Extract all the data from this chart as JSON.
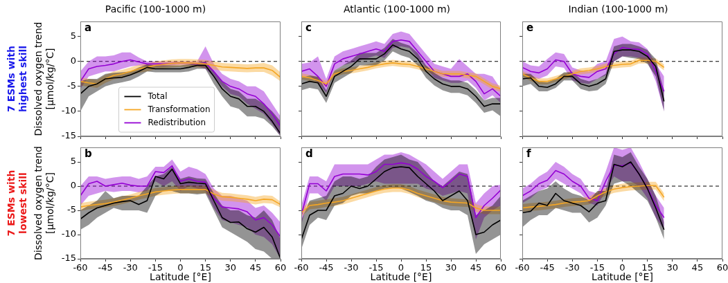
{
  "chart_data": [
    {
      "type": "line",
      "title": "Pacific (100-1000 m)",
      "ylabel": "Dissolved oxygen trend [μmol/kg/°C]",
      "annotations": [
        "a",
        "7 ESMs with highest skill"
      ],
      "x": [
        -60,
        -55,
        -50,
        -45,
        -40,
        -35,
        -30,
        -25,
        -20,
        -15,
        -10,
        -5,
        0,
        5,
        10,
        15,
        20,
        25,
        30,
        35,
        40,
        45,
        50,
        55,
        60
      ],
      "xlim": [
        -60,
        60
      ],
      "xticks": [
        -60,
        -45,
        -30,
        -15,
        0,
        15,
        30,
        45,
        60
      ],
      "ylim": [
        -15,
        8
      ],
      "yticks": [
        -15,
        -10,
        -5,
        0,
        5
      ],
      "tick_labels": "y",
      "legend": "bottom",
      "ref_lines": [
        {
          "axis": "y",
          "value": 0,
          "color": "#000000",
          "line_style": "dashed"
        }
      ],
      "series": [
        {
          "name": "Total",
          "color": "#000000",
          "values": [
            -6.5,
            -5,
            -4.5,
            -3.5,
            -3.3,
            -3.2,
            -2.7,
            -2,
            -1.2,
            -1.5,
            -1.5,
            -1.5,
            -1.5,
            -1.2,
            -0.8,
            -0.8,
            -3,
            -5.5,
            -7,
            -7.5,
            -9,
            -9,
            -10,
            -12,
            -14.5
          ],
          "lower": [
            -10,
            -7,
            -6,
            -5,
            -4.5,
            -4.2,
            -3.8,
            -3,
            -2,
            -2.2,
            -2.2,
            -2.2,
            -2.2,
            -2,
            -1.5,
            -1.5,
            -4.5,
            -7,
            -9,
            -9.5,
            -11,
            -11,
            -11.5,
            -13,
            -15
          ],
          "upper": [
            -4,
            -3.5,
            -3.5,
            -2.5,
            -2.3,
            -2.2,
            -2,
            -1.2,
            -0.6,
            -0.8,
            -0.8,
            -0.8,
            -0.8,
            -0.6,
            -0.3,
            0,
            -2,
            -4,
            -5.5,
            -6,
            -7.5,
            -7.5,
            -8.5,
            -10,
            -12
          ]
        },
        {
          "name": "Transformation",
          "color": "#f5a623",
          "values": [
            -4,
            -4.3,
            -4.5,
            -3.5,
            -2.8,
            -2.5,
            -2,
            -1.5,
            -1.2,
            -0.8,
            -0.6,
            -0.4,
            -0.3,
            -0.3,
            -0.4,
            -0.5,
            -0.8,
            -1.1,
            -1.2,
            -1.3,
            -1.4,
            -1.3,
            -1.3,
            -1.8,
            -3.2
          ],
          "lower": [
            -4.8,
            -5.1,
            -5.3,
            -4.3,
            -3.6,
            -3.3,
            -2.8,
            -2.3,
            -2,
            -1.6,
            -1.4,
            -1.2,
            -1.1,
            -1.1,
            -1.2,
            -1.3,
            -1.6,
            -1.9,
            -2,
            -2.1,
            -2.2,
            -2.1,
            -2.1,
            -2.8,
            -4
          ],
          "upper": [
            -3.2,
            -3.5,
            -3.7,
            -2.7,
            -2,
            -1.7,
            -1.2,
            -0.7,
            -0.4,
            0,
            0.2,
            0.4,
            0.5,
            0.5,
            0.4,
            0.3,
            0,
            -0.3,
            -0.4,
            -0.5,
            -0.6,
            -0.5,
            -0.3,
            -0.8,
            -2.2
          ]
        },
        {
          "name": "Redistribution",
          "color": "#9400d3",
          "values": [
            -4,
            -1.5,
            -1,
            -0.8,
            -0.5,
            0,
            0.3,
            -0.1,
            -0.5,
            -0.5,
            -0.5,
            -0.4,
            -0.3,
            -0.3,
            -0.5,
            -0.3,
            -2,
            -4,
            -5,
            -5.5,
            -6.5,
            -7,
            -8.5,
            -10.5,
            -13
          ],
          "lower": [
            -5.5,
            -3,
            -2.5,
            -2,
            -2,
            -1.5,
            -1,
            -0.8,
            -1,
            -1,
            -1,
            -0.8,
            -0.7,
            -0.7,
            -0.9,
            -1.5,
            -3,
            -5,
            -6.5,
            -7,
            -8.5,
            -9.5,
            -10.5,
            -12.5,
            -15
          ],
          "upper": [
            -2,
            0,
            1,
            1,
            1.2,
            1.8,
            1.8,
            0.8,
            0,
            0,
            0,
            0,
            0,
            0,
            0,
            3,
            -0.5,
            -2.5,
            -3.5,
            -4,
            -5,
            -5,
            -6,
            -8.5,
            -11
          ]
        }
      ]
    },
    {
      "type": "line",
      "title": "Atlantic (100-1000 m)",
      "annotations": [
        "c"
      ],
      "x": [
        -60,
        -55,
        -50,
        -45,
        -40,
        -35,
        -30,
        -25,
        -20,
        -15,
        -10,
        -5,
        0,
        5,
        10,
        15,
        20,
        25,
        30,
        35,
        40,
        45,
        50,
        55,
        60
      ],
      "xlim": [
        -60,
        60
      ],
      "xticks": [
        -60,
        -45,
        -30,
        -15,
        0,
        15,
        30,
        45,
        60
      ],
      "ylim": [
        -15,
        8
      ],
      "yticks": [
        -15,
        -10,
        -5,
        0,
        5
      ],
      "tick_labels": false,
      "ref_lines": [
        {
          "axis": "y",
          "value": 0,
          "color": "#000000",
          "line_style": "dashed"
        }
      ],
      "series": [
        {
          "color": "#000000",
          "values": [
            -4.5,
            -4,
            -4.3,
            -7,
            -3,
            -2,
            -1,
            0.5,
            0.5,
            0.5,
            1.5,
            3.3,
            2.5,
            2,
            0.5,
            -2,
            -3.5,
            -4.5,
            -5,
            -5,
            -5.5,
            -7,
            -9,
            -8.5,
            -8.5
          ],
          "lower": [
            -5.8,
            -5.3,
            -5.6,
            -8.3,
            -4.3,
            -3.3,
            -2.3,
            -0.8,
            -0.8,
            -0.8,
            0.2,
            2,
            1.2,
            0.7,
            -0.8,
            -3.3,
            -4.8,
            -5.8,
            -6.3,
            -6.3,
            -6.8,
            -8.3,
            -10.3,
            -9.8,
            -11
          ],
          "upper": [
            -3.3,
            -2.8,
            -3.1,
            -5.8,
            -1.8,
            -0.8,
            0.2,
            1.7,
            1.7,
            1.7,
            2.7,
            4.5,
            3.7,
            3.2,
            1.7,
            -0.8,
            -2.3,
            -3.3,
            -3.8,
            -3.8,
            -4.3,
            -5.8,
            -7.8,
            -7.3,
            -7.3
          ]
        },
        {
          "color": "#f5a623",
          "values": [
            -3,
            -3.3,
            -3.8,
            -4.5,
            -2.5,
            -2,
            -1.8,
            -1.5,
            -1.2,
            -0.8,
            -0.5,
            -0.3,
            -0.5,
            -0.6,
            -1,
            -1.5,
            -2,
            -2.5,
            -2.5,
            -2.5,
            -2.8,
            -3,
            -4,
            -5,
            -5.5
          ],
          "lower": [
            -3.6,
            -3.9,
            -4.4,
            -5.1,
            -3.1,
            -2.6,
            -2.4,
            -2.1,
            -1.8,
            -1.4,
            -1.1,
            -0.9,
            -1.1,
            -1.2,
            -1.6,
            -2.1,
            -2.6,
            -3.1,
            -3.1,
            -3.1,
            -3.4,
            -3.6,
            -4.6,
            -5.6,
            -6.1
          ],
          "upper": [
            -2.4,
            -2.7,
            -3.2,
            -3.9,
            -1.9,
            -1.4,
            -1.2,
            -0.9,
            -0.6,
            -0.2,
            0.1,
            0.3,
            0.1,
            0,
            -0.4,
            -0.9,
            -1.4,
            -1.9,
            -1.9,
            -1.9,
            -2.2,
            -2.4,
            -3.4,
            -4.4,
            -4.9
          ]
        },
        {
          "color": "#9400d3",
          "values": [
            -2,
            -1.5,
            -3,
            -5,
            -0.5,
            0.5,
            1,
            1.5,
            2,
            2.5,
            2,
            4,
            4.3,
            4,
            2,
            0,
            -2,
            -2.5,
            -3,
            -3,
            -2.5,
            -4,
            -6.5,
            -5.5,
            -7
          ],
          "lower": [
            -3.3,
            -2.8,
            -4.3,
            -6.3,
            -1.8,
            -0.8,
            -0.3,
            0.2,
            0.7,
            1.2,
            0.7,
            2.7,
            3,
            2.7,
            0.7,
            -1.3,
            -3.3,
            -3.8,
            -4.3,
            -4.3,
            -3.8,
            -5.3,
            -7.8,
            -6.8,
            -8.3
          ],
          "upper": [
            -0.5,
            -0.2,
            1,
            -3.5,
            1,
            2,
            2.5,
            3,
            3.5,
            4,
            3.5,
            5.5,
            6,
            5.5,
            3.5,
            1.5,
            -0.5,
            -1,
            -1.5,
            0.5,
            -1,
            -2.5,
            -2.5,
            -3,
            -5.5
          ]
        }
      ]
    },
    {
      "type": "line",
      "title": "Indian (100-1000 m)",
      "annotations": [
        "e"
      ],
      "x": [
        -60,
        -55,
        -50,
        -45,
        -40,
        -35,
        -30,
        -25,
        -20,
        -15,
        -10,
        -5,
        0,
        5,
        10,
        15,
        20,
        25
      ],
      "xlim": [
        -60,
        60
      ],
      "xticks": [
        -60,
        -45,
        -30,
        -15,
        0,
        15,
        30,
        45,
        60
      ],
      "ylim": [
        -15,
        8
      ],
      "yticks": [
        -15,
        -10,
        -5,
        0,
        5
      ],
      "tick_labels": false,
      "ref_lines": [
        {
          "axis": "y",
          "value": 0,
          "color": "#000000",
          "line_style": "dashed"
        }
      ],
      "series": [
        {
          "color": "#000000",
          "values": [
            -3.5,
            -3.3,
            -5,
            -5.2,
            -4.5,
            -3,
            -3,
            -4.5,
            -5,
            -4.5,
            -3.5,
            2,
            2.3,
            2.3,
            2,
            1,
            -1,
            -8
          ],
          "lower": [
            -5,
            -4.5,
            -6,
            -6,
            -5.3,
            -3.8,
            -3.8,
            -5.5,
            -6,
            -5.8,
            -4.5,
            0,
            1,
            0.7,
            0.5,
            -0.5,
            -3,
            -10
          ],
          "upper": [
            -2.5,
            -2.5,
            -4,
            -4.2,
            -3.5,
            -2.2,
            -2.2,
            -3.5,
            -4,
            -3.5,
            -2.5,
            3,
            3.5,
            3.5,
            3,
            2.3,
            0.5,
            -6
          ]
        },
        {
          "color": "#f5a623",
          "values": [
            -2.5,
            -3.3,
            -4,
            -4,
            -3.5,
            -3,
            -2.5,
            -2,
            -1.8,
            -1.5,
            -1,
            -0.8,
            -0.6,
            -0.5,
            0.2,
            0.2,
            0,
            -1.2
          ],
          "lower": [
            -3.1,
            -3.9,
            -4.6,
            -4.6,
            -4.1,
            -3.6,
            -3.1,
            -2.6,
            -2.4,
            -2.1,
            -1.6,
            -1.4,
            -1.2,
            -1.1,
            -0.4,
            -0.4,
            -0.6,
            -1.8
          ],
          "upper": [
            -1.9,
            -2.7,
            -3.4,
            -3.4,
            -2.9,
            -2.4,
            -1.9,
            -1.4,
            -1.2,
            -0.9,
            -0.4,
            -0.2,
            0,
            0.1,
            0.8,
            0.8,
            0.6,
            -0.6
          ]
        },
        {
          "color": "#9400d3",
          "values": [
            -1.2,
            -2,
            -2.3,
            -1.5,
            0.3,
            0,
            -2.5,
            -3,
            -3.2,
            -2,
            -1.5,
            1.5,
            2.8,
            2.5,
            2.4,
            1.5,
            -2,
            -6
          ],
          "lower": [
            -2.5,
            -3.2,
            -3.5,
            -2.8,
            -1,
            -1.3,
            -3.8,
            -4.3,
            -4.5,
            -3.5,
            -2.8,
            0,
            1,
            1,
            0.7,
            0,
            -4,
            -10
          ],
          "upper": [
            0,
            -0.8,
            -1,
            0.5,
            1.8,
            1.5,
            -1.2,
            -1.8,
            -2,
            -0.5,
            0,
            4.5,
            5,
            4,
            3.8,
            2.5,
            -0.5,
            -3
          ]
        }
      ]
    },
    {
      "type": "line",
      "ylabel": "Dissolved oxygen trend [μmol/kg/°C]",
      "xlabel": "Latitude [°E]",
      "annotations": [
        "b",
        "7 ESMs with lowest skill"
      ],
      "x": [
        -60,
        -55,
        -50,
        -45,
        -40,
        -35,
        -30,
        -25,
        -20,
        -15,
        -10,
        -5,
        0,
        5,
        10,
        15,
        20,
        25,
        30,
        35,
        40,
        45,
        50,
        55,
        60
      ],
      "xlim": [
        -60,
        60
      ],
      "xticks": [
        -60,
        -45,
        -30,
        -15,
        0,
        15,
        30,
        45,
        60
      ],
      "ylim": [
        -15,
        8
      ],
      "yticks": [
        -15,
        -10,
        -5,
        0,
        5
      ],
      "ref_lines": [
        {
          "axis": "y",
          "value": 0,
          "color": "#000000",
          "line_style": "dashed"
        }
      ],
      "series": [
        {
          "color": "#000000",
          "values": [
            -6.8,
            -5.5,
            -4.5,
            -4,
            -3.5,
            -3.2,
            -3,
            -3.8,
            -3,
            2,
            1.5,
            3.5,
            0.5,
            0.8,
            0.6,
            0.5,
            -3,
            -6.5,
            -7.5,
            -7.4,
            -8.8,
            -9.5,
            -8.5,
            -10.5,
            -15
          ],
          "lower": [
            -9,
            -8,
            -6.5,
            -5.5,
            -4.5,
            -5,
            -5,
            -5,
            -5.5,
            -2,
            -1,
            -1,
            -1.5,
            -1.5,
            -1.7,
            -1.5,
            -5,
            -8.5,
            -9.5,
            -10.5,
            -11.5,
            -13,
            -13.5,
            -15,
            -15
          ],
          "upper": [
            -5,
            -4,
            -3,
            -1,
            -2.5,
            -2,
            -2,
            -2,
            0,
            2,
            2.5,
            4,
            1.5,
            2,
            1.6,
            1.5,
            -1.5,
            -4,
            -5,
            -5,
            -6,
            -6.5,
            -5,
            -7,
            -11
          ]
        },
        {
          "color": "#f5a623",
          "values": [
            -4.3,
            -4,
            -3.8,
            -3.6,
            -3.3,
            -2.9,
            -2.5,
            -2,
            -1.6,
            -1.2,
            -1,
            -0.8,
            -0.7,
            -0.7,
            -0.7,
            -0.7,
            -1.6,
            -2.2,
            -2.3,
            -2.5,
            -2.7,
            -3,
            -2.7,
            -2.8,
            -3.8
          ],
          "lower": [
            -5.1,
            -4.8,
            -4.6,
            -4.4,
            -4.1,
            -3.7,
            -3.3,
            -2.8,
            -2.4,
            -2,
            -1.8,
            -1.6,
            -1.5,
            -1.5,
            -1.5,
            -1.5,
            -2.4,
            -3,
            -3.1,
            -3.3,
            -3.5,
            -3.8,
            -3.5,
            -3.6,
            -4.4
          ],
          "upper": [
            -3.5,
            -3.2,
            -3,
            -2.8,
            -2.5,
            -2.1,
            -1.7,
            -1.2,
            -0.8,
            -0.4,
            -0.2,
            0,
            0.1,
            0.1,
            0.1,
            0.1,
            -0.8,
            -1.4,
            -1.5,
            -1.7,
            -1.9,
            -2.2,
            -1.9,
            -2,
            -3.2
          ]
        },
        {
          "color": "#9400d3",
          "values": [
            -2,
            0.5,
            1,
            0,
            0.3,
            0.6,
            0.2,
            0,
            0,
            3,
            2.8,
            4.2,
            1,
            1.5,
            1,
            0.8,
            -2.5,
            -4.3,
            -4.5,
            -4.7,
            -5.3,
            -7,
            -6.5,
            -8,
            -10.5
          ],
          "lower": [
            -4,
            -2,
            -1.5,
            -1,
            -1.2,
            -1,
            -1,
            -1.3,
            -1,
            1,
            0,
            1,
            -1,
            0,
            -0.5,
            -1,
            -4.5,
            -7,
            -7.5,
            -8,
            -8.5,
            -10,
            -10.5,
            -12,
            -15
          ],
          "upper": [
            0,
            2,
            2,
            1.5,
            1.8,
            2,
            2,
            1.5,
            2,
            4,
            4,
            5.5,
            3,
            4,
            3.5,
            2.5,
            -0.5,
            -2,
            -2,
            -2.5,
            -3,
            -4.5,
            -4,
            -5.5,
            -7.5
          ]
        }
      ]
    },
    {
      "type": "line",
      "xlabel": "Latitude [°E]",
      "annotations": [
        "d"
      ],
      "x": [
        -60,
        -55,
        -50,
        -45,
        -40,
        -35,
        -30,
        -25,
        -20,
        -15,
        -10,
        -5,
        0,
        5,
        10,
        15,
        20,
        25,
        30,
        35,
        40,
        45,
        50,
        55,
        60
      ],
      "xlim": [
        -60,
        60
      ],
      "xticks": [
        -60,
        -45,
        -30,
        -15,
        0,
        15,
        30,
        45,
        60
      ],
      "ylim": [
        -15,
        8
      ],
      "yticks": [
        -15,
        -10,
        -5,
        0,
        5
      ],
      "tick_labels": "x",
      "ref_lines": [
        {
          "axis": "y",
          "value": 0,
          "color": "#000000",
          "line_style": "dashed"
        }
      ],
      "series": [
        {
          "color": "#000000",
          "values": [
            -11,
            -6,
            -5,
            -5,
            -2,
            -1.5,
            0,
            -0.5,
            0,
            1.5,
            3,
            3.8,
            4,
            3.8,
            2,
            0.5,
            -1,
            -3,
            -2,
            -1,
            -3,
            -10,
            -9.5,
            -8,
            -7
          ],
          "lower": [
            -13,
            -8,
            -6.5,
            -7,
            -4,
            -3.5,
            -2,
            -1.5,
            -1.5,
            -1,
            -0.5,
            -0.3,
            -0.5,
            -1.2,
            -2,
            -3,
            -3.5,
            -4.5,
            -5,
            -5,
            -6,
            -14,
            -12,
            -11,
            -10
          ],
          "upper": [
            -7,
            -3,
            -2.5,
            -2,
            1,
            2,
            2,
            1.5,
            2,
            4,
            5.5,
            6,
            6.5,
            5.5,
            5,
            3,
            1,
            0,
            1.5,
            3,
            2.5,
            -6,
            -5,
            -4,
            -2
          ]
        },
        {
          "color": "#f5a623",
          "values": [
            -5.5,
            -4,
            -3.8,
            -3.5,
            -3.3,
            -3,
            -2.5,
            -2,
            -1.5,
            -1,
            -0.6,
            -0.4,
            -0.4,
            -0.8,
            -1.5,
            -2,
            -2.5,
            -3,
            -3.3,
            -3.4,
            -3.5,
            -4.5,
            -5,
            -5,
            -5
          ],
          "lower": [
            -6.3,
            -4.8,
            -4.6,
            -4.3,
            -4.1,
            -3.8,
            -3.3,
            -2.8,
            -2.3,
            -1.8,
            -1.4,
            -1.2,
            -1.2,
            -1.6,
            -2.3,
            -2.8,
            -3.3,
            -3.8,
            -4.1,
            -4.2,
            -4.3,
            -5.3,
            -5.8,
            -5.8,
            -5.8
          ],
          "upper": [
            -4.7,
            -3.2,
            -3,
            -2.7,
            -2.5,
            -2.2,
            -1.7,
            -1.2,
            -0.7,
            -0.2,
            0.2,
            0.4,
            0.4,
            0,
            -0.7,
            -1.2,
            -1.7,
            -2.2,
            -2.5,
            -2.6,
            -2.7,
            -3.7,
            -4.2,
            -4.2,
            -4.2
          ]
        },
        {
          "color": "#9400d3",
          "values": [
            -6,
            0.5,
            0.5,
            -1,
            2,
            2.5,
            2.5,
            2.5,
            2.3,
            3,
            4.5,
            4.5,
            4.8,
            4.5,
            3.5,
            2,
            1,
            -0.3,
            1,
            2.5,
            2,
            -6.5,
            -4,
            -2.5,
            -0.8
          ],
          "lower": [
            -8,
            -1.5,
            -1.5,
            -3,
            0,
            0,
            0,
            0,
            0.5,
            1,
            0.5,
            0.5,
            0.5,
            0.5,
            0.5,
            -0.5,
            -1,
            -2,
            -1.5,
            -1,
            -1.5,
            -11,
            -6.5,
            -5,
            -4
          ],
          "upper": [
            -4,
            2,
            2,
            1,
            4.5,
            4.5,
            4.5,
            4.5,
            4.5,
            5.5,
            6.5,
            6.5,
            7,
            6.5,
            5.5,
            4.5,
            3,
            1.5,
            3,
            4.5,
            4.5,
            -3.5,
            -1.5,
            0,
            0.3
          ]
        }
      ]
    },
    {
      "type": "line",
      "xlabel": "Latitude [°E]",
      "annotations": [
        "f"
      ],
      "x": [
        -60,
        -55,
        -50,
        -45,
        -40,
        -35,
        -30,
        -25,
        -20,
        -15,
        -10,
        -5,
        0,
        5,
        10,
        15,
        20,
        25
      ],
      "xlim": [
        -60,
        60
      ],
      "xticks": [
        -60,
        -45,
        -30,
        -15,
        0,
        15,
        30,
        45,
        60
      ],
      "ylim": [
        -15,
        8
      ],
      "yticks": [
        -15,
        -10,
        -5,
        0,
        5
      ],
      "tick_labels": "x",
      "ref_lines": [
        {
          "axis": "y",
          "value": 0,
          "color": "#000000",
          "line_style": "dashed"
        }
      ],
      "series": [
        {
          "color": "#000000",
          "values": [
            -5.5,
            -5.2,
            -3.5,
            -4,
            -1.5,
            -3,
            -3.5,
            -4,
            -5.3,
            -3.5,
            -3,
            4.5,
            4,
            5,
            2.5,
            -0.5,
            -4.5,
            -9
          ],
          "lower": [
            -8.5,
            -7,
            -6,
            -6,
            -4.5,
            -5,
            -5.5,
            -5.5,
            -7.5,
            -6.5,
            -4,
            0.5,
            1,
            0,
            -1.5,
            -3,
            -6.5,
            -11
          ],
          "upper": [
            -3,
            -2,
            -1,
            -0.5,
            1,
            -0.5,
            -1.5,
            -2,
            -3,
            -1,
            -1,
            6.5,
            6,
            7,
            4,
            1.5,
            -2,
            -7.5
          ]
        },
        {
          "color": "#f5a623",
          "values": [
            -4.5,
            -4.3,
            -4.2,
            -4,
            -3.8,
            -3.5,
            -3.3,
            -3.2,
            -3,
            -2,
            -1.2,
            -0.6,
            -0.3,
            -0.1,
            0,
            0.1,
            0.1,
            -2.3
          ],
          "lower": [
            -5.3,
            -5.1,
            -5,
            -4.8,
            -4.6,
            -4.3,
            -4.1,
            -4,
            -3.8,
            -2.8,
            -2,
            -1.4,
            -1.1,
            -0.9,
            -0.8,
            -0.7,
            -0.7,
            -3.1
          ],
          "upper": [
            -3.7,
            -3.5,
            -3.4,
            -3.2,
            -3,
            -2.7,
            -2.5,
            -2.4,
            -2.2,
            -1.2,
            -0.4,
            0.2,
            0.5,
            0.7,
            0.8,
            0.9,
            0.9,
            -1.5
          ]
        },
        {
          "color": "#9400d3",
          "values": [
            -2,
            -1,
            0.5,
            1.2,
            3.2,
            2.5,
            1,
            0,
            -2.5,
            -3,
            1,
            4.3,
            4.2,
            4.8,
            2.5,
            -0.3,
            -4,
            -6.5
          ],
          "lower": [
            -3.5,
            -2.5,
            -1,
            -0.3,
            1.5,
            0.5,
            -0.5,
            -1.5,
            -3.5,
            -4,
            -1,
            2,
            1,
            1,
            0,
            -2.5,
            -6.5,
            -9
          ],
          "upper": [
            -0.5,
            0.5,
            2,
            3,
            5,
            4,
            2.5,
            1.5,
            -1,
            -1.5,
            3,
            8,
            7.5,
            8,
            5,
            1.5,
            -2,
            -4.5
          ]
        }
      ]
    }
  ]
}
